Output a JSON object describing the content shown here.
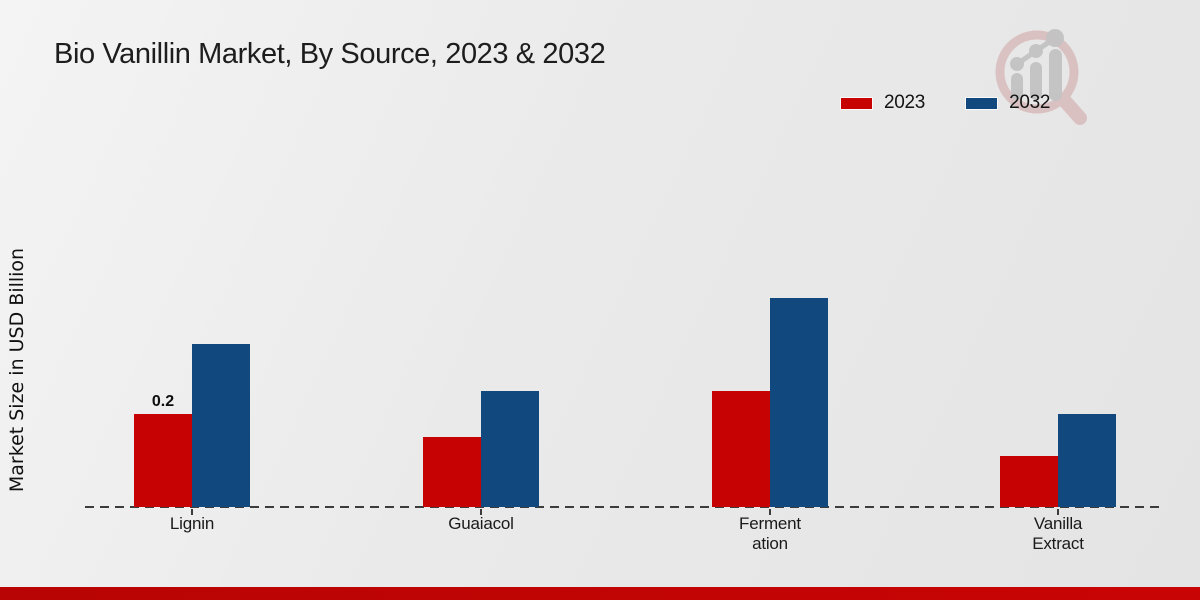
{
  "title": "Bio Vanillin Market, By Source, 2023 & 2032",
  "legend": {
    "items": [
      {
        "label": "2023",
        "color": "#c70202"
      },
      {
        "label": "2032",
        "color": "#11497e"
      }
    ]
  },
  "colors": {
    "bar_2023": "#c70202",
    "bar_2032": "#11497e",
    "footer_bar": "#c10505",
    "baseline": "#3c3c3c",
    "title_text": "#1d1d1d"
  },
  "chart_data": {
    "type": "bar",
    "title": "Bio Vanillin Market, By Source, 2023 & 2032",
    "ylabel": "Market Size in USD Billion",
    "xlabel": "",
    "unit": "USD Billion",
    "categories": [
      "Lignin",
      "Guaiacol",
      "Fermentation",
      "Vanilla Extract"
    ],
    "category_display_labels": [
      "Lignin",
      "Guaiacol",
      "Ferment\nation",
      "Vanilla\nExtract"
    ],
    "series": [
      {
        "name": "2023",
        "color": "#c70202",
        "values": [
          0.2,
          0.15,
          0.25,
          0.11
        ]
      },
      {
        "name": "2032",
        "color": "#11497e",
        "values": [
          0.35,
          0.25,
          0.45,
          0.2
        ]
      }
    ],
    "data_labels": [
      {
        "category": "Lignin",
        "series": "2023",
        "text": "0.2"
      }
    ],
    "ylim": [
      0,
      0.5
    ],
    "grid": false,
    "y_axis_ticks_visible": false,
    "legend_position": "top-right",
    "baseline_style": "dashed"
  },
  "logo": {
    "name": "market-research-chart-magnifier-watermark"
  }
}
